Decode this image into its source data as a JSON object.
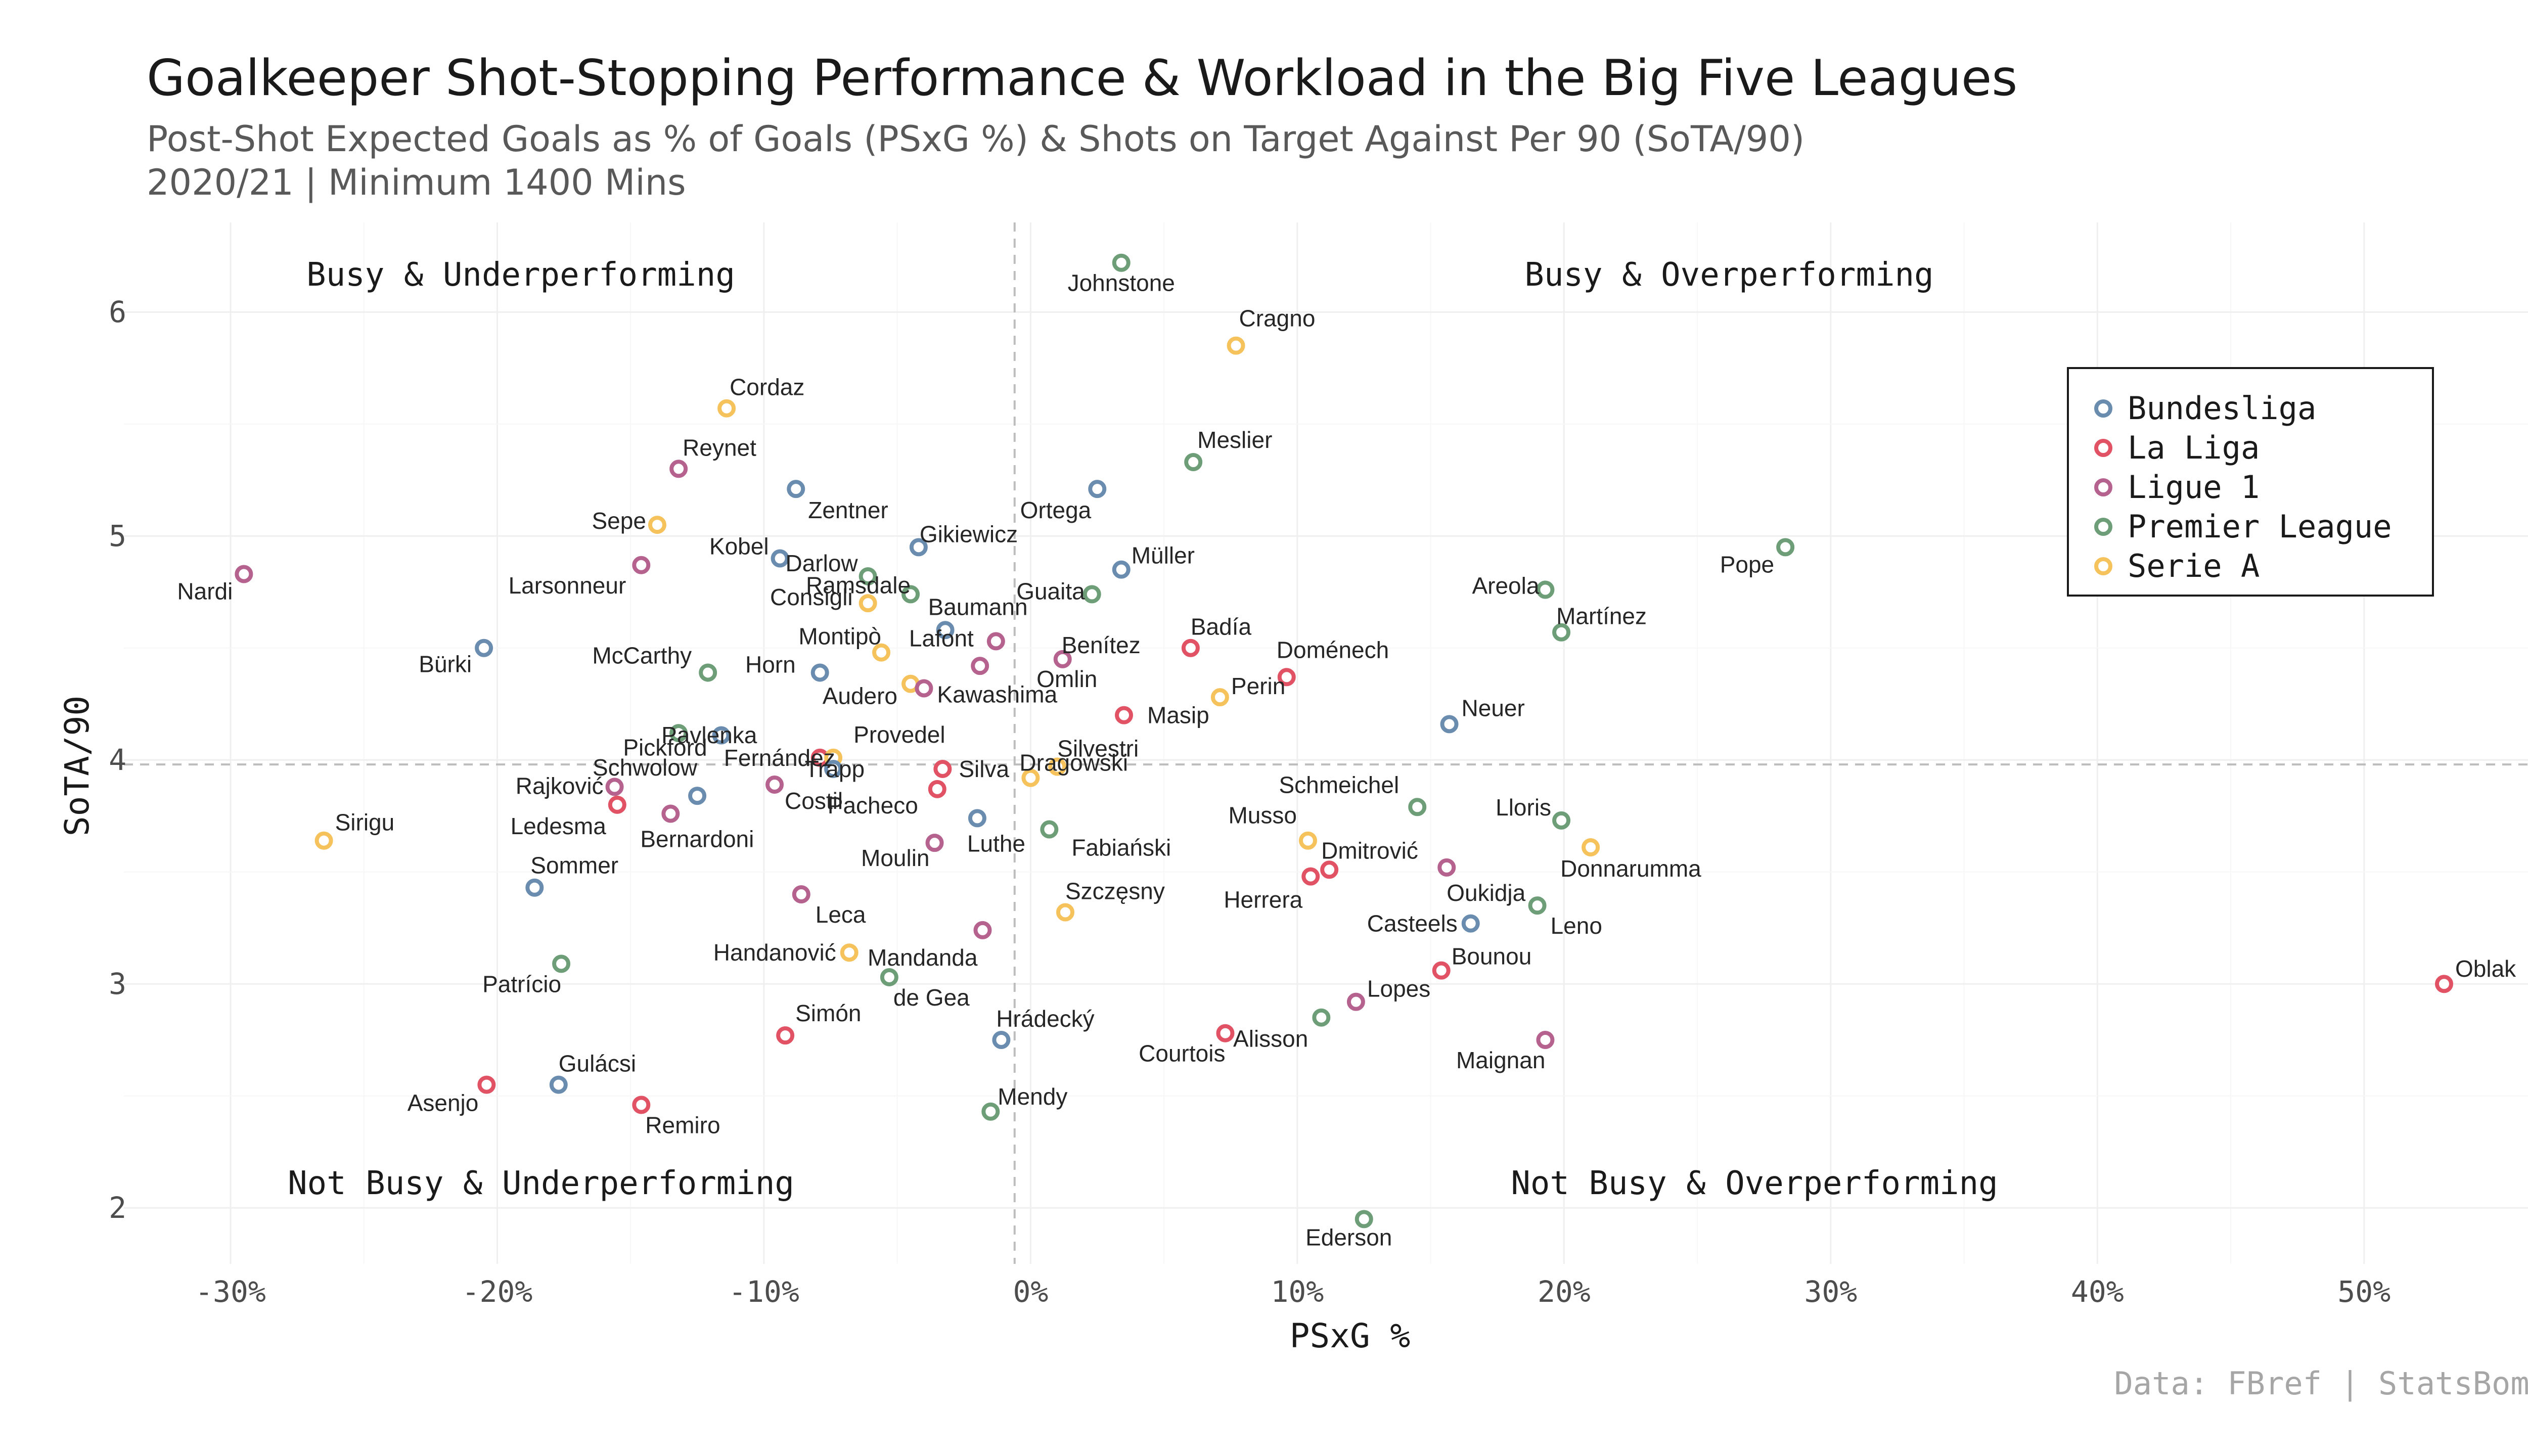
{
  "title": "Goalkeeper Shot-Stopping Performance & Workload in the Big Five Leagues",
  "subtitle_line1": "Post-Shot Expected Goals as % of Goals (PSxG %) & Shots on Target Against Per 90 (SoTA/90)",
  "subtitle_line2": "2020/21 | Minimum 1400 Mins",
  "caption": "Data: FBref | StatsBomb",
  "chart_data": {
    "type": "scatter",
    "xlabel": "PSxG %",
    "ylabel": "SoTA/90",
    "xlim": [
      -34,
      57
    ],
    "ylim": [
      1.75,
      6.4
    ],
    "xticks": [
      -30,
      -20,
      -10,
      0,
      10,
      20,
      30,
      40,
      50
    ],
    "xtick_labels": [
      "-30%",
      "-20%",
      "-10%",
      "0%",
      "10%",
      "20%",
      "30%",
      "40%",
      "50%"
    ],
    "yticks": [
      2,
      3,
      4,
      5,
      6
    ],
    "ytick_labels": [
      "2",
      "3",
      "4",
      "5",
      "6"
    ],
    "reference_lines": {
      "x": -0.6,
      "y": 3.98
    },
    "quadrant_labels": {
      "top_left": "Busy & Underperforming",
      "top_right": "Busy & Overperforming",
      "bottom_left": "Not Busy & Underperforming",
      "bottom_right": "Not Busy & Overperforming"
    },
    "grid": true,
    "legend_position": "top-right",
    "leagues": [
      {
        "name": "Bundesliga",
        "color": "#6a8caf"
      },
      {
        "name": "La Liga",
        "color": "#e05264"
      },
      {
        "name": "Ligue 1",
        "color": "#b5628f"
      },
      {
        "name": "Premier League",
        "color": "#6e9e78"
      },
      {
        "name": "Serie A",
        "color": "#f5c25c"
      }
    ],
    "points": [
      {
        "name": "Johnstone",
        "league": "Premier League",
        "x": 3.4,
        "y": 6.22
      },
      {
        "name": "Cragno",
        "league": "Serie A",
        "x": 7.7,
        "y": 5.85
      },
      {
        "name": "Cordaz",
        "league": "Serie A",
        "x": -11.4,
        "y": 5.57
      },
      {
        "name": "Reynet",
        "league": "Ligue 1",
        "x": -13.2,
        "y": 5.3
      },
      {
        "name": "Meslier",
        "league": "Premier League",
        "x": 6.1,
        "y": 5.33
      },
      {
        "name": "Zentner",
        "league": "Bundesliga",
        "x": -8.8,
        "y": 5.21
      },
      {
        "name": "Ortega",
        "league": "Bundesliga",
        "x": 2.5,
        "y": 5.21
      },
      {
        "name": "Sepe",
        "league": "Serie A",
        "x": -14.0,
        "y": 5.05
      },
      {
        "name": "Gikiewicz",
        "league": "Bundesliga",
        "x": -4.2,
        "y": 4.95
      },
      {
        "name": "Kobel",
        "league": "Bundesliga",
        "x": -9.4,
        "y": 4.9
      },
      {
        "name": "Darlow",
        "league": "Premier League",
        "x": -6.1,
        "y": 4.82
      },
      {
        "name": "Pope",
        "league": "Premier League",
        "x": 28.3,
        "y": 4.95
      },
      {
        "name": "Nardi",
        "league": "Ligue 1",
        "x": -29.5,
        "y": 4.83
      },
      {
        "name": "Larsonneur",
        "league": "Ligue 1",
        "x": -14.6,
        "y": 4.87
      },
      {
        "name": "Consigli",
        "league": "Serie A",
        "x": -6.1,
        "y": 4.7
      },
      {
        "name": "Ramsdale",
        "league": "Premier League",
        "x": -4.5,
        "y": 4.74
      },
      {
        "name": "Guaita",
        "league": "Premier League",
        "x": 2.3,
        "y": 4.74
      },
      {
        "name": "Müller",
        "league": "Bundesliga",
        "x": 3.4,
        "y": 4.85
      },
      {
        "name": "Areola",
        "league": "Premier League",
        "x": 19.3,
        "y": 4.76
      },
      {
        "name": "Martínez",
        "league": "Premier League",
        "x": 19.9,
        "y": 4.57
      },
      {
        "name": "Montipò",
        "league": "Serie A",
        "x": -5.6,
        "y": 4.48
      },
      {
        "name": "Baumann",
        "league": "Bundesliga",
        "x": -3.2,
        "y": 4.58
      },
      {
        "name": "Bürki",
        "league": "Bundesliga",
        "x": -20.5,
        "y": 4.5
      },
      {
        "name": "McCarthy",
        "league": "Premier League",
        "x": -12.1,
        "y": 4.39
      },
      {
        "name": "Horn",
        "league": "Bundesliga",
        "x": -7.9,
        "y": 4.39
      },
      {
        "name": "Lafont",
        "league": "Ligue 1",
        "x": -1.3,
        "y": 4.53
      },
      {
        "name": "Benítez",
        "league": "Ligue 1",
        "x": 1.2,
        "y": 4.45
      },
      {
        "name": "Badía",
        "league": "La Liga",
        "x": 6.0,
        "y": 4.5
      },
      {
        "name": "Doménech",
        "league": "La Liga",
        "x": 9.6,
        "y": 4.37
      },
      {
        "name": "Omlin",
        "league": "Ligue 1",
        "x": -1.9,
        "y": 4.42
      },
      {
        "name": "Audero",
        "league": "Serie A",
        "x": -4.5,
        "y": 4.34
      },
      {
        "name": "Kawashima",
        "league": "Ligue 1",
        "x": -4.0,
        "y": 4.32
      },
      {
        "name": "Perin",
        "league": "Serie A",
        "x": 7.1,
        "y": 4.28
      },
      {
        "name": "Masip",
        "league": "La Liga",
        "x": 3.5,
        "y": 4.2
      },
      {
        "name": "Neuer",
        "league": "Bundesliga",
        "x": 15.7,
        "y": 4.16
      },
      {
        "name": "Pavlenka",
        "league": "Premier League",
        "x": -13.2,
        "y": 4.12
      },
      {
        "name": "Pickford",
        "league": "Bundesliga",
        "x": -11.6,
        "y": 4.11
      },
      {
        "name": "Fernández",
        "league": "La Liga",
        "x": -7.9,
        "y": 4.01
      },
      {
        "name": "Provedel",
        "league": "Serie A",
        "x": -7.4,
        "y": 4.01
      },
      {
        "name": "Silvestri",
        "league": "Serie A",
        "x": 1.0,
        "y": 3.97
      },
      {
        "name": "Trapp",
        "league": "Bundesliga",
        "x": -7.4,
        "y": 3.96
      },
      {
        "name": "Silva",
        "league": "La Liga",
        "x": -3.3,
        "y": 3.96
      },
      {
        "name": "Rajković",
        "league": "Ligue 1",
        "x": -15.6,
        "y": 3.88
      },
      {
        "name": "Schwolow",
        "league": "Bundesliga",
        "x": -12.5,
        "y": 3.84
      },
      {
        "name": "Costil",
        "league": "Ligue 1",
        "x": -9.6,
        "y": 3.89
      },
      {
        "name": "Pacheco",
        "league": "La Liga",
        "x": -3.5,
        "y": 3.87
      },
      {
        "name": "Dragowski",
        "league": "Serie A",
        "x": 0.0,
        "y": 3.92
      },
      {
        "name": "Ledesma",
        "league": "La Liga",
        "x": -15.5,
        "y": 3.8
      },
      {
        "name": "Bernardoni",
        "league": "Ligue 1",
        "x": -13.5,
        "y": 3.76
      },
      {
        "name": "Schmeichel",
        "league": "Premier League",
        "x": 14.5,
        "y": 3.79
      },
      {
        "name": "Lloris",
        "league": "Premier League",
        "x": 19.9,
        "y": 3.73
      },
      {
        "name": "Luthe",
        "league": "Bundesliga",
        "x": -2.0,
        "y": 3.74
      },
      {
        "name": "Fabiański",
        "league": "Premier League",
        "x": 0.7,
        "y": 3.69
      },
      {
        "name": "Musso",
        "league": "Serie A",
        "x": 10.4,
        "y": 3.64
      },
      {
        "name": "Sirigu",
        "league": "Serie A",
        "x": -26.5,
        "y": 3.64
      },
      {
        "name": "Donnarumma",
        "league": "Serie A",
        "x": 21.0,
        "y": 3.61
      },
      {
        "name": "Moulin",
        "league": "Ligue 1",
        "x": -3.6,
        "y": 3.63
      },
      {
        "name": "Dmitrović",
        "league": "La Liga",
        "x": 11.2,
        "y": 3.51
      },
      {
        "name": "Herrera",
        "league": "La Liga",
        "x": 10.5,
        "y": 3.48
      },
      {
        "name": "Oukidja",
        "league": "Ligue 1",
        "x": 15.6,
        "y": 3.52
      },
      {
        "name": "Sommer",
        "league": "Bundesliga",
        "x": -18.6,
        "y": 3.43
      },
      {
        "name": "Leca",
        "league": "Ligue 1",
        "x": -8.6,
        "y": 3.4
      },
      {
        "name": "Szczęsny",
        "league": "Serie A",
        "x": 1.3,
        "y": 3.32
      },
      {
        "name": "Leno",
        "league": "Premier League",
        "x": 19.0,
        "y": 3.35
      },
      {
        "name": "Casteels",
        "league": "Bundesliga",
        "x": 16.5,
        "y": 3.27
      },
      {
        "name": "Handanović",
        "league": "Serie A",
        "x": -6.8,
        "y": 3.14
      },
      {
        "name": "Mandanda",
        "league": "Ligue 1",
        "x": -1.8,
        "y": 3.24
      },
      {
        "name": "Patrício",
        "league": "Premier League",
        "x": -17.6,
        "y": 3.09
      },
      {
        "name": "de Gea",
        "league": "Premier League",
        "x": -5.3,
        "y": 3.03
      },
      {
        "name": "Bounou",
        "league": "La Liga",
        "x": 15.4,
        "y": 3.06
      },
      {
        "name": "Oblak",
        "league": "La Liga",
        "x": 53.0,
        "y": 3.0
      },
      {
        "name": "Lopes",
        "league": "Ligue 1",
        "x": 12.2,
        "y": 2.92
      },
      {
        "name": "Simón",
        "league": "La Liga",
        "x": -9.2,
        "y": 2.77
      },
      {
        "name": "Hrádecký",
        "league": "Bundesliga",
        "x": -1.1,
        "y": 2.75
      },
      {
        "name": "Courtois",
        "league": "La Liga",
        "x": 7.3,
        "y": 2.78
      },
      {
        "name": "Alisson",
        "league": "Premier League",
        "x": 10.9,
        "y": 2.85
      },
      {
        "name": "Maignan",
        "league": "Ligue 1",
        "x": 19.3,
        "y": 2.75
      },
      {
        "name": "Gulácsi",
        "league": "Bundesliga",
        "x": -17.7,
        "y": 2.55
      },
      {
        "name": "Asenjo",
        "league": "La Liga",
        "x": -20.4,
        "y": 2.55
      },
      {
        "name": "Remiro",
        "league": "La Liga",
        "x": -14.6,
        "y": 2.46
      },
      {
        "name": "Mendy",
        "league": "Premier League",
        "x": -1.5,
        "y": 2.43
      },
      {
        "name": "Ederson",
        "league": "Premier League",
        "x": 12.5,
        "y": 1.95
      }
    ]
  }
}
